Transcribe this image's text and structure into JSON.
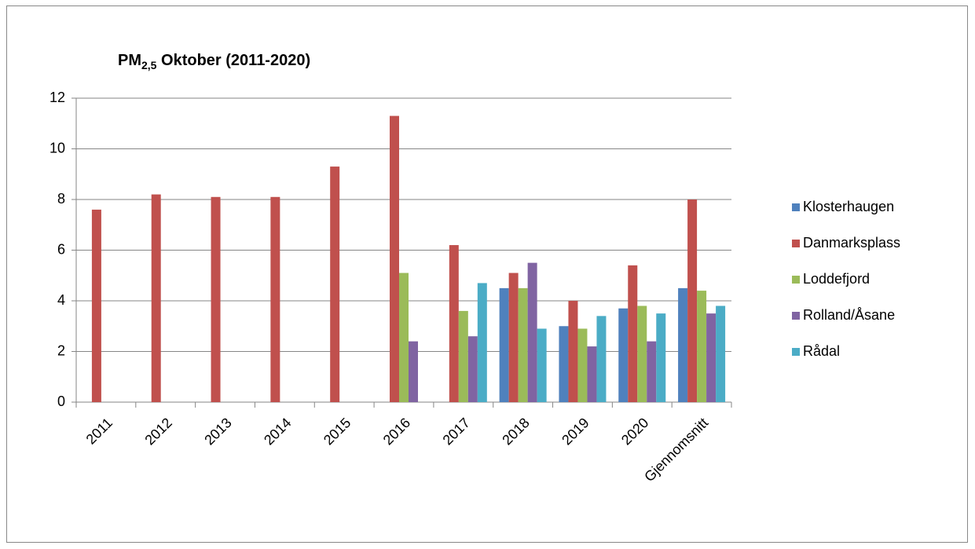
{
  "chart_data": {
    "type": "bar",
    "title": {
      "text": "PM",
      "subscript": "2,5",
      "rest": " Oktober (2011-2020)"
    },
    "categories": [
      "2011",
      "2012",
      "2013",
      "2014",
      "2015",
      "2016",
      "2017",
      "2018",
      "2019",
      "2020",
      "Gjennomsnitt"
    ],
    "series": [
      {
        "name": "Klosterhaugen",
        "color": "#4f81bd",
        "values": [
          null,
          null,
          null,
          null,
          null,
          null,
          null,
          4.5,
          3.0,
          3.7,
          4.5
        ]
      },
      {
        "name": "Danmarksplass",
        "color": "#c0504d",
        "values": [
          7.6,
          8.2,
          8.1,
          8.1,
          9.3,
          11.3,
          6.2,
          5.1,
          4.0,
          5.4,
          8.0
        ]
      },
      {
        "name": "Loddefjord",
        "color": "#9bbb59",
        "values": [
          null,
          null,
          null,
          null,
          null,
          5.1,
          3.6,
          4.5,
          2.9,
          3.8,
          4.4
        ]
      },
      {
        "name": "Rolland/Åsane",
        "color": "#8064a2",
        "values": [
          null,
          null,
          null,
          null,
          null,
          2.4,
          2.6,
          5.5,
          2.2,
          2.4,
          3.5
        ]
      },
      {
        "name": "Rådal",
        "color": "#4bacc6",
        "values": [
          null,
          null,
          null,
          null,
          null,
          null,
          4.7,
          2.9,
          3.4,
          3.5,
          3.8
        ]
      }
    ],
    "ylim": [
      0,
      12
    ],
    "yticks": [
      0,
      2,
      4,
      6,
      8,
      10,
      12
    ],
    "grid": true,
    "legend": "right"
  }
}
